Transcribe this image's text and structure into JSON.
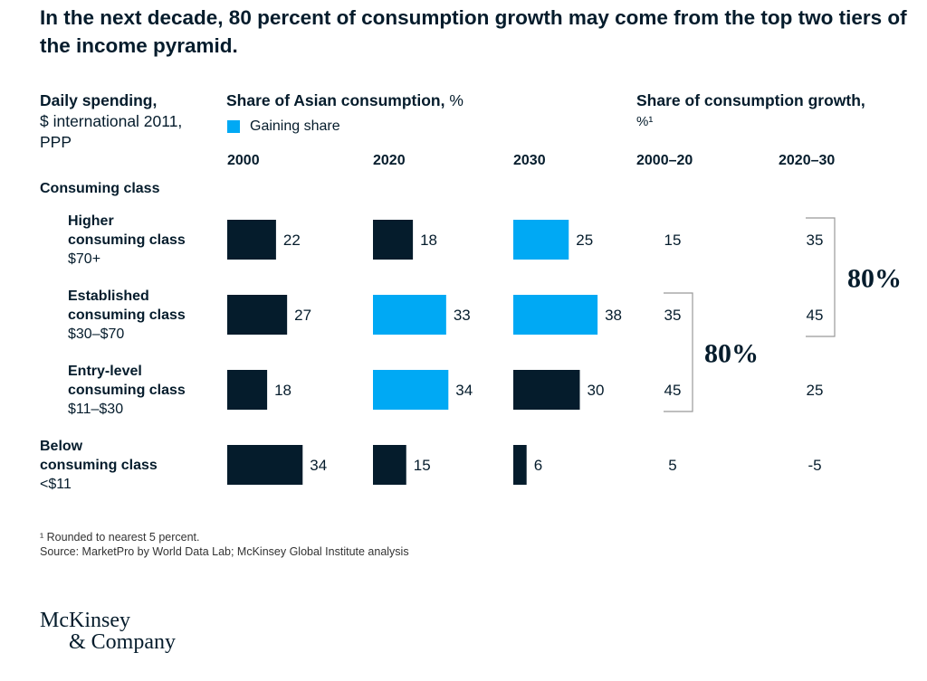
{
  "title": "In the next decade, 80 percent of consumption growth may come from the top two tiers of the income pyramid.",
  "left_header": {
    "bold": "Daily spending,",
    "line2": "$ international 2011,",
    "line3": "PPP"
  },
  "share_header": {
    "bold": "Share of Asian consumption,",
    "unit": " %"
  },
  "growth_header": {
    "bold": "Share of consumption growth,",
    "unit": "%¹"
  },
  "legend": {
    "label": "Gaining share",
    "color": "#00a9f4"
  },
  "years": [
    "2000",
    "2020",
    "2030"
  ],
  "growth_periods": [
    "2000–20",
    "2020–30"
  ],
  "consuming_class_label": "Consuming class",
  "rows": [
    {
      "name_line1": "Higher",
      "name_line2": "consuming class",
      "range": "$70+"
    },
    {
      "name_line1": "Established",
      "name_line2": "consuming class",
      "range": "$30–$70"
    },
    {
      "name_line1": "Entry-level",
      "name_line2": "consuming class",
      "range": "$11–$30"
    },
    {
      "name_line1": "Below",
      "name_line2": "consuming class",
      "range": "<$11"
    }
  ],
  "colors": {
    "dark": "#051c2c",
    "gaining": "#00a9f4",
    "bracket": "#999999"
  },
  "chart_data": {
    "type": "bar",
    "categories": [
      "Higher consuming class",
      "Established consuming class",
      "Entry-level consuming class",
      "Below consuming class"
    ],
    "series": [
      {
        "name": "2000",
        "values": [
          22,
          27,
          18,
          34
        ],
        "gaining": [
          false,
          false,
          false,
          false
        ]
      },
      {
        "name": "2020",
        "values": [
          18,
          33,
          34,
          15
        ],
        "gaining": [
          false,
          true,
          true,
          false
        ]
      },
      {
        "name": "2030",
        "values": [
          25,
          38,
          30,
          6
        ],
        "gaining": [
          true,
          true,
          false,
          false
        ]
      }
    ],
    "growth": [
      {
        "name": "2000–20",
        "values": [
          "15",
          "35",
          "45",
          "5"
        ]
      },
      {
        "name": "2020–30",
        "values": [
          "35",
          "45",
          "25",
          "-5"
        ]
      }
    ],
    "brackets": [
      {
        "period": "2000–20",
        "from_row": 1,
        "to_row": 2,
        "label": "80%"
      },
      {
        "period": "2020–30",
        "from_row": 0,
        "to_row": 1,
        "label": "80%"
      }
    ]
  },
  "footnote": "¹ Rounded to nearest 5 percent.",
  "source": "Source: MarketPro by World Data Lab; McKinsey Global Institute analysis",
  "logo": {
    "line1": "McKinsey",
    "line2": "& Company"
  }
}
